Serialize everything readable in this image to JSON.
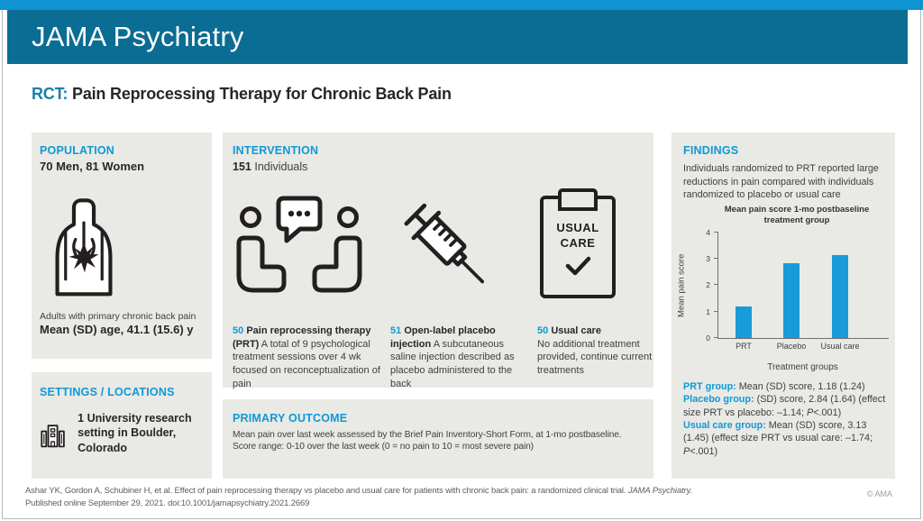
{
  "colors": {
    "strip": "#0f93d2",
    "masthead_bg": "#0b6d93",
    "accent": "#0f99d6",
    "title_accent": "#1b7ea7",
    "panel_bg": "#e9e9e5",
    "bar": "#199bd8"
  },
  "masthead": {
    "journal": "JAMA Psychiatry"
  },
  "title": {
    "prefix": "RCT:",
    "text": "Pain Reprocessing Therapy for Chronic Back Pain"
  },
  "population": {
    "heading": "POPULATION",
    "count_line": "70 Men, 81 Women",
    "caption": "Adults with primary chronic back pain",
    "age_line": "Mean (SD) age, 41.1 (15.6) y"
  },
  "settings": {
    "heading": "SETTINGS / LOCATIONS",
    "text": "1 University research setting in Boulder, Colorado"
  },
  "intervention": {
    "heading": "INTERVENTION",
    "count": "151",
    "count_label": "Individuals",
    "clipboard_label": "USUAL CARE",
    "groups": [
      {
        "count": "50",
        "name": "Pain reprocessing therapy (PRT)",
        "desc": "A total of 9 psychological treatment sessions over 4 wk focused on reconceptualization of pain"
      },
      {
        "count": "51",
        "name": "Open-label placebo injection",
        "desc": "A subcutaneous saline injection described as placebo administered to the back"
      },
      {
        "count": "50",
        "name": "Usual care",
        "desc": "No additional treatment provided, continue current treatments"
      }
    ]
  },
  "outcome": {
    "heading": "PRIMARY OUTCOME",
    "line1": "Mean pain over last week assessed by the Brief Pain Inventory-Short Form, at 1-mo postbaseline.",
    "line2": "Score range: 0-10 over the last week (0 = no pain to 10 = most severe pain)"
  },
  "findings": {
    "heading": "FINDINGS",
    "intro": "Individuals randomized to PRT reported large reductions in pain compared with individuals randomized to placebo or usual care",
    "stats": [
      {
        "label": "PRT group:",
        "text1": "Mean (SD) score, 1.18 (1.24)",
        "p": "",
        "text2": ""
      },
      {
        "label": "Placebo group:",
        "text1": "(SD) score, 2.84 (1.64) (effect size PRT vs placebo: –1.14; ",
        "p": "P",
        "text2": "<.001)"
      },
      {
        "label": "Usual care group:",
        "text1": "Mean (SD) score, 3.13 (1.45) (effect size PRT vs usual care: –1.74; ",
        "p": "P",
        "text2": "<.001)"
      }
    ]
  },
  "chart_data": {
    "type": "bar",
    "title": "Mean pain score 1-mo postbaseline treatment group",
    "categories": [
      "PRT",
      "Placebo",
      "Usual care"
    ],
    "values": [
      1.18,
      2.84,
      3.13
    ],
    "xlabel": "Treatment groups",
    "ylabel": "Mean pain score",
    "ylim": [
      0,
      4
    ],
    "yticks": [
      0,
      1,
      2,
      3,
      4
    ],
    "grid": false,
    "legend": false,
    "bar_color": "#199bd8"
  },
  "footer": {
    "citation_text": "Ashar YK, Gordon A, Schubiner H, et al. Effect of pain reprocessing therapy vs placebo and usual care for patients with chronic back pain: a randomized clinical trial. ",
    "citation_italic": "JAMA Psychiatry.",
    "citation_line2": "Published online September 29, 2021. doi:10.1001/jamapsychiatry.2021.2669",
    "copyright": "© AMA"
  }
}
